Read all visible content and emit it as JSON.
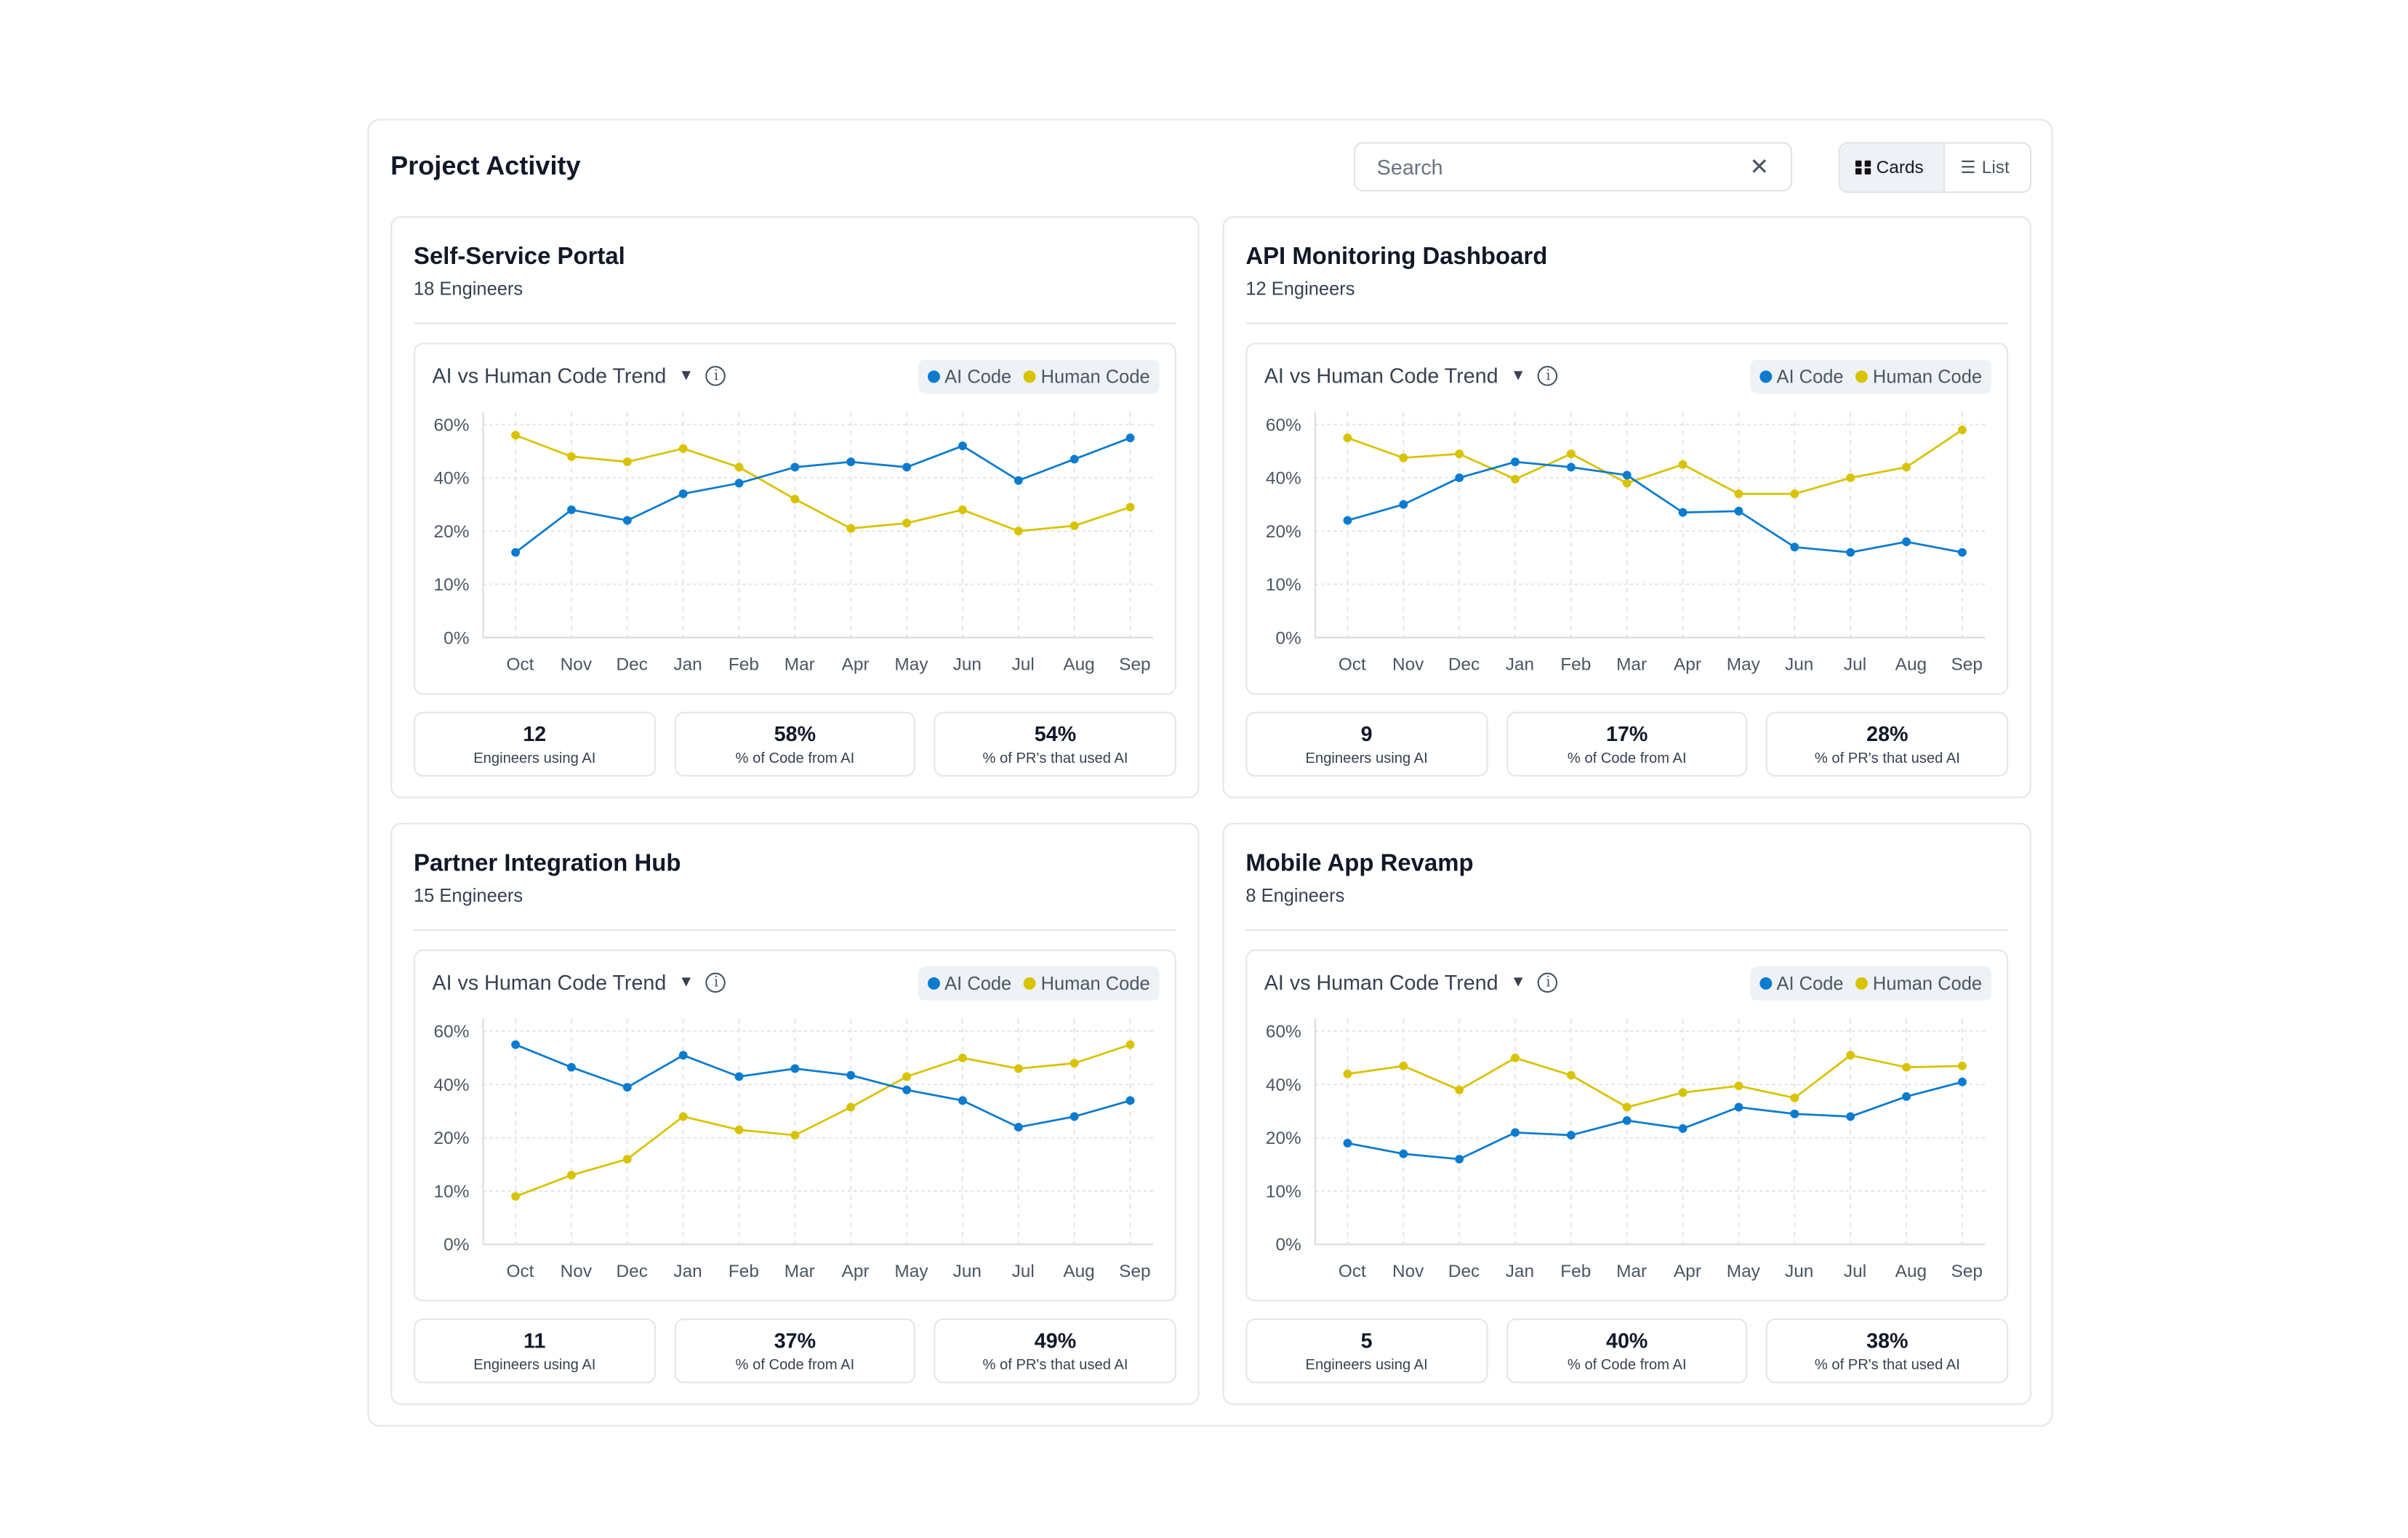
{
  "header": {
    "title": "Project Activity",
    "search_placeholder": "Search",
    "view_cards": "Cards",
    "view_list": "List"
  },
  "colors": {
    "ai": "#0b7bcf",
    "human": "#d8c300"
  },
  "chart_data": [
    {
      "type": "line",
      "project": "Self-Service Portal",
      "engineers": "18 Engineers",
      "title": "AI vs Human Code Trend",
      "categories": [
        "Oct",
        "Nov",
        "Dec",
        "Jan",
        "Feb",
        "Mar",
        "Apr",
        "May",
        "Jun",
        "Jul",
        "Aug",
        "Sep"
      ],
      "yticks": [
        "0%",
        "10%",
        "20%",
        "40%",
        "60%"
      ],
      "ytick_values": [
        0,
        10,
        20,
        40,
        60
      ],
      "ylim": [
        0,
        60
      ],
      "grid": true,
      "legend": "top-right",
      "series": [
        {
          "name": "AI Code",
          "values": [
            16,
            28,
            24,
            34,
            38,
            44,
            46,
            44,
            52,
            39,
            47,
            55
          ]
        },
        {
          "name": "Human Code",
          "values": [
            56,
            48,
            46,
            51,
            44,
            32,
            21,
            23,
            28,
            20,
            22,
            29
          ]
        }
      ],
      "stats": [
        {
          "value": "12",
          "label": "Engineers using AI"
        },
        {
          "value": "58%",
          "label": "% of Code from AI"
        },
        {
          "value": "54%",
          "label": "% of PR's that used AI"
        }
      ]
    },
    {
      "type": "line",
      "project": "API Monitoring Dashboard",
      "engineers": "12 Engineers",
      "title": "AI vs Human Code Trend",
      "categories": [
        "Oct",
        "Nov",
        "Dec",
        "Jan",
        "Feb",
        "Mar",
        "Apr",
        "May",
        "Jun",
        "Jul",
        "Aug",
        "Sep"
      ],
      "yticks": [
        "0%",
        "10%",
        "20%",
        "40%",
        "60%"
      ],
      "ytick_values": [
        0,
        10,
        20,
        40,
        60
      ],
      "ylim": [
        0,
        60
      ],
      "grid": true,
      "legend": "top-right",
      "series": [
        {
          "name": "AI Code",
          "values": [
            24,
            30,
            40,
            46,
            44,
            41,
            27,
            27.5,
            17,
            16,
            18,
            16
          ]
        },
        {
          "name": "Human Code",
          "values": [
            55,
            47.5,
            49,
            39.5,
            49,
            38,
            45,
            34,
            34,
            40,
            44,
            58
          ]
        }
      ],
      "stats": [
        {
          "value": "9",
          "label": "Engineers using AI"
        },
        {
          "value": "17%",
          "label": "% of Code from AI"
        },
        {
          "value": "28%",
          "label": "% of PR's that used AI"
        }
      ]
    },
    {
      "type": "line",
      "project": "Partner Integration Hub",
      "engineers": "15 Engineers",
      "title": "AI vs Human Code Trend",
      "categories": [
        "Oct",
        "Nov",
        "Dec",
        "Jan",
        "Feb",
        "Mar",
        "Apr",
        "May",
        "Jun",
        "Jul",
        "Aug",
        "Sep"
      ],
      "yticks": [
        "0%",
        "10%",
        "20%",
        "40%",
        "60%"
      ],
      "ytick_values": [
        0,
        10,
        20,
        40,
        60
      ],
      "ylim": [
        0,
        60
      ],
      "grid": true,
      "legend": "top-right",
      "series": [
        {
          "name": "AI Code",
          "values": [
            55,
            46.5,
            39,
            51,
            43,
            46,
            43.5,
            38,
            34,
            24,
            28,
            34
          ]
        },
        {
          "name": "Human Code",
          "values": [
            9,
            13,
            16,
            28,
            23,
            21,
            31.5,
            43,
            50,
            46,
            48,
            55
          ]
        }
      ],
      "stats": [
        {
          "value": "11",
          "label": "Engineers using AI"
        },
        {
          "value": "37%",
          "label": "% of Code from AI"
        },
        {
          "value": "49%",
          "label": "% of PR's that used AI"
        }
      ]
    },
    {
      "type": "line",
      "project": "Mobile App Revamp",
      "engineers": "8 Engineers",
      "title": "AI vs Human Code Trend",
      "categories": [
        "Oct",
        "Nov",
        "Dec",
        "Jan",
        "Feb",
        "Mar",
        "Apr",
        "May",
        "Jun",
        "Jul",
        "Aug",
        "Sep"
      ],
      "yticks": [
        "0%",
        "10%",
        "20%",
        "40%",
        "60%"
      ],
      "ytick_values": [
        0,
        10,
        20,
        40,
        60
      ],
      "ylim": [
        0,
        60
      ],
      "grid": true,
      "legend": "top-right",
      "series": [
        {
          "name": "AI Code",
          "values": [
            19,
            17,
            16,
            22,
            21,
            26.5,
            23.5,
            31.5,
            29,
            28,
            35.5,
            41
          ]
        },
        {
          "name": "Human Code",
          "values": [
            44,
            47,
            38,
            50,
            43.5,
            31.5,
            37,
            39.5,
            35,
            51,
            46.5,
            47
          ]
        }
      ],
      "stats": [
        {
          "value": "5",
          "label": "Engineers using AI"
        },
        {
          "value": "40%",
          "label": "% of Code from AI"
        },
        {
          "value": "38%",
          "label": "% of PR's that used AI"
        }
      ]
    }
  ]
}
